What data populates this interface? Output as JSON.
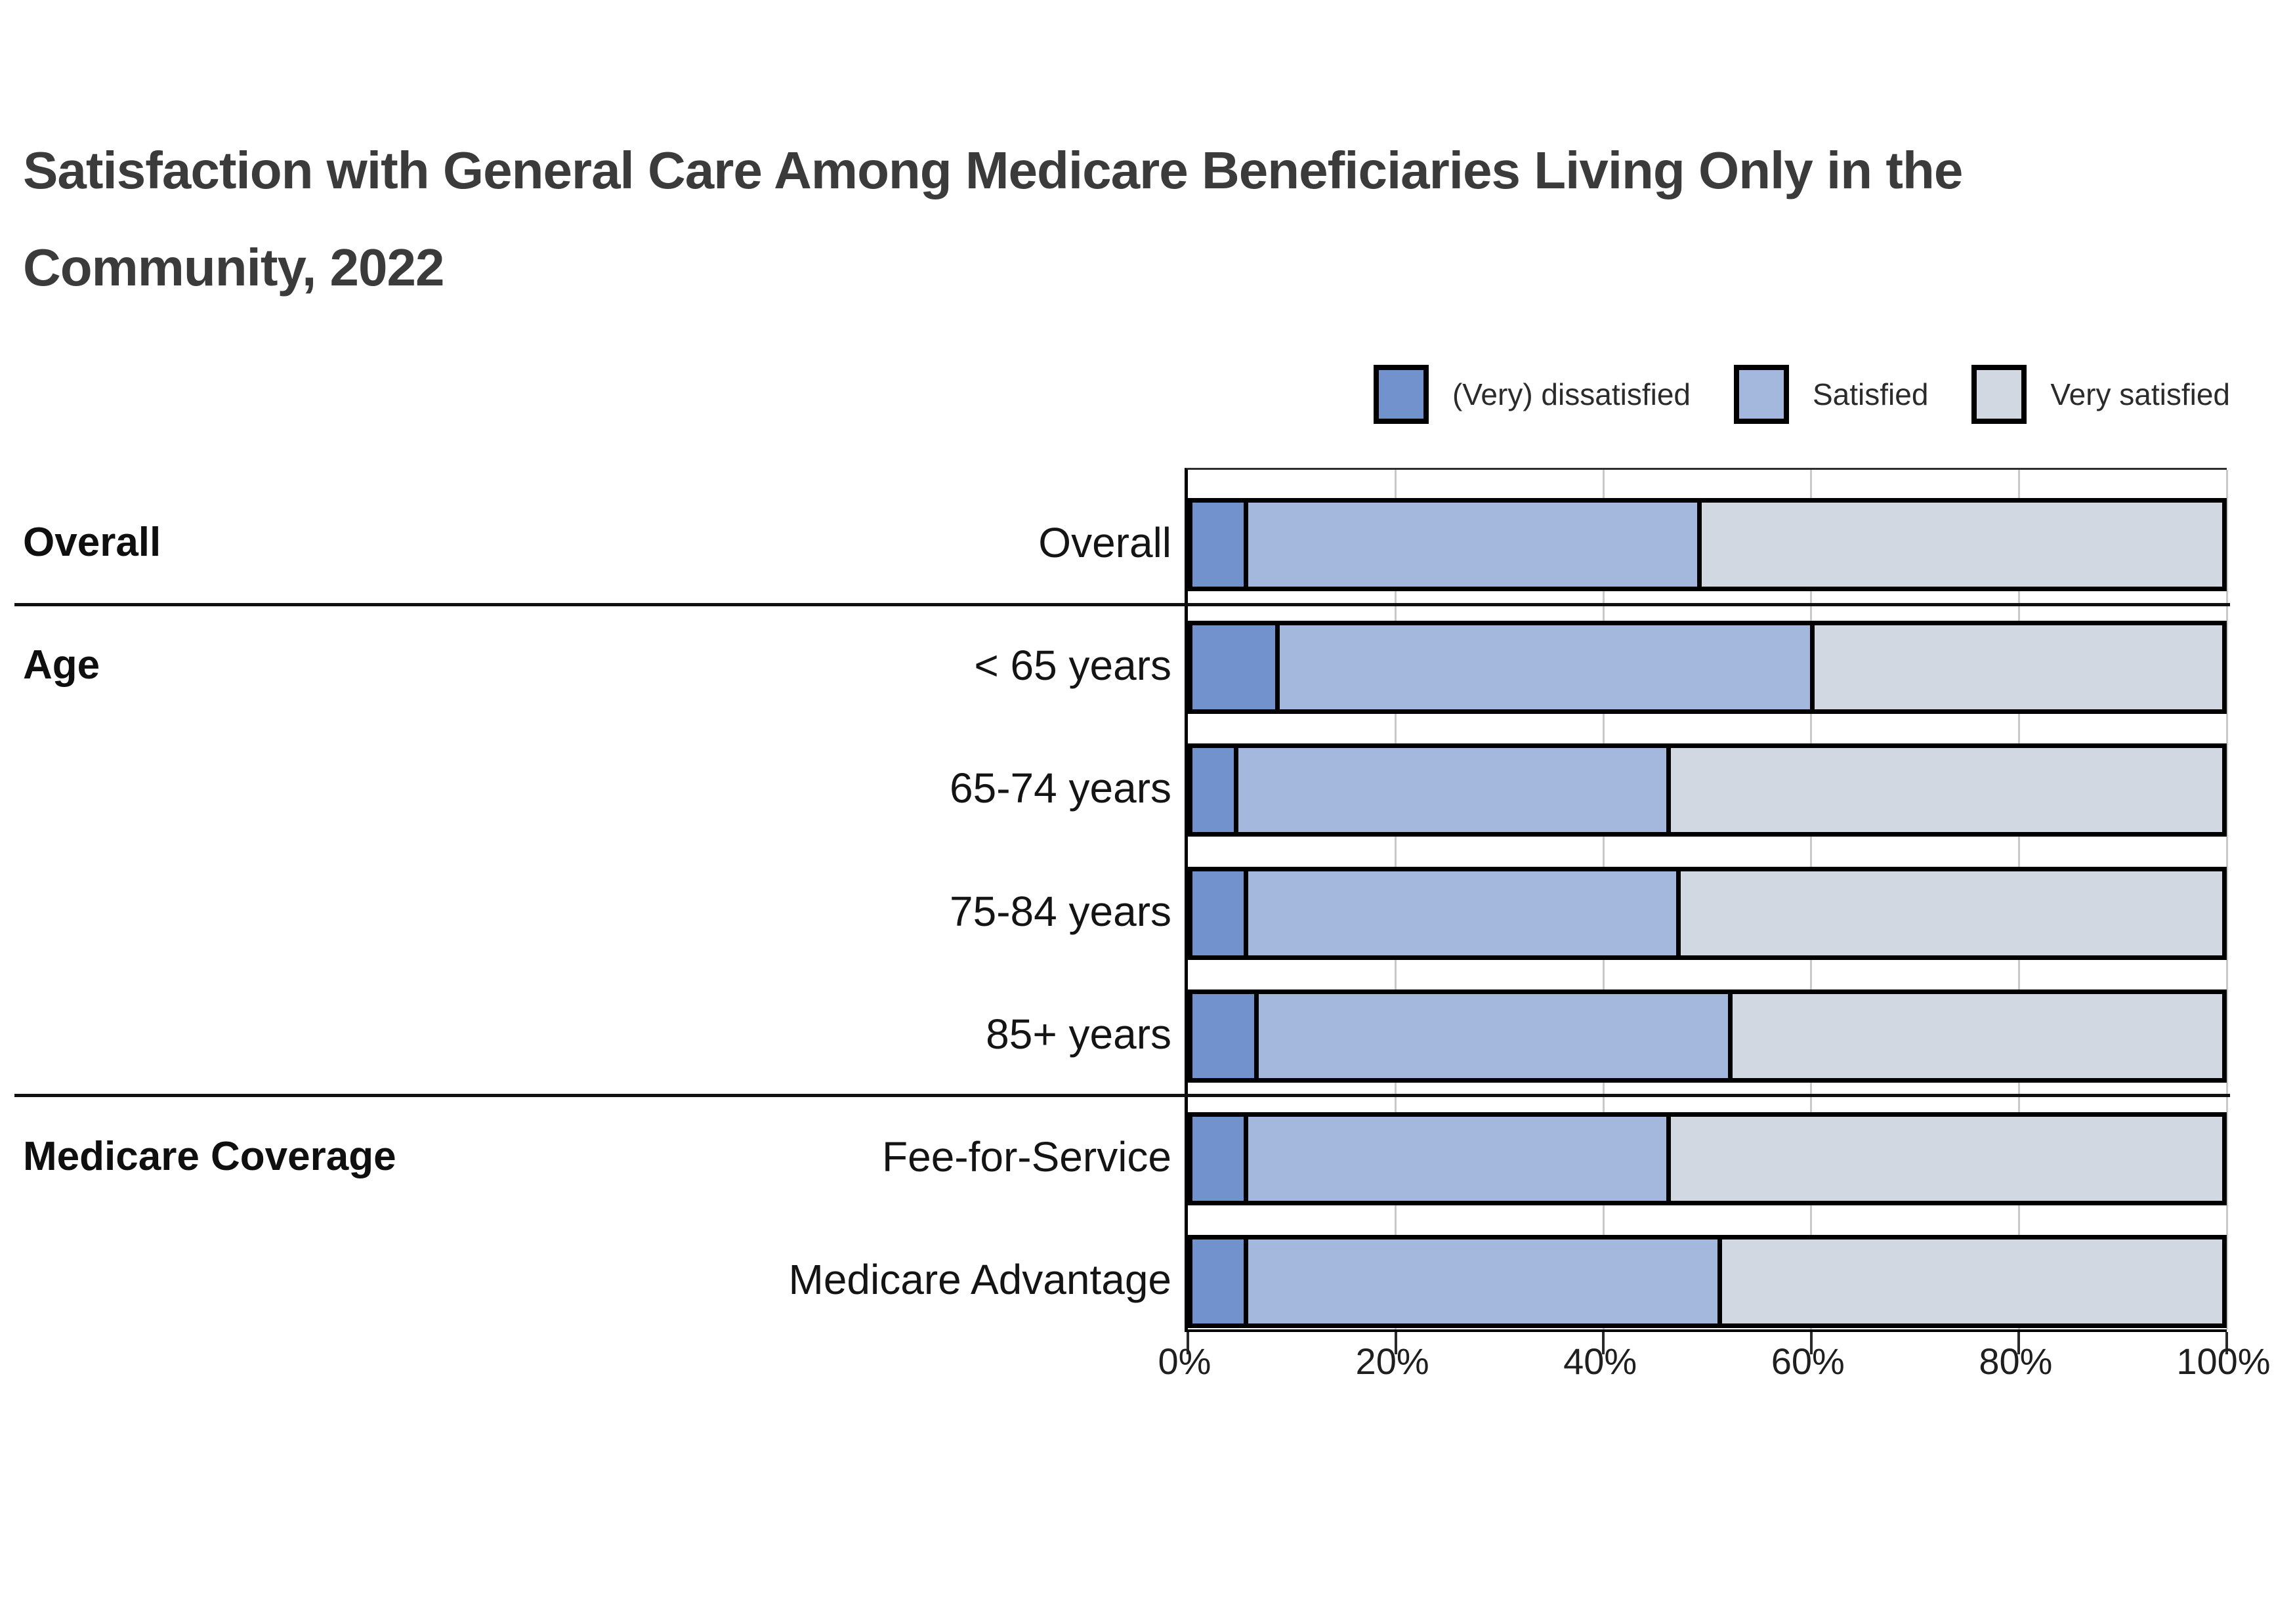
{
  "title": {
    "lines": [
      "Satisfaction with General Care Among Medicare Beneficiaries Living Only in the",
      "Community, 2022"
    ]
  },
  "legend": {
    "items": [
      {
        "label": "(Very) dissatisfied",
        "color": "#7292ce"
      },
      {
        "label": "Satisfied",
        "color": "#a4b7dc"
      },
      {
        "label": "Very satisfied",
        "color": "#d2d8e2"
      }
    ]
  },
  "chart_data": {
    "type": "bar",
    "subtype": "horizontal_stacked",
    "stacked": true,
    "unit": "percent",
    "title": "Satisfaction with General Care Among Medicare Beneficiaries Living Only in the Community, 2022",
    "categories": [
      "Overall",
      "< 65 years",
      "65-74 years",
      "75-84 years",
      "85+ years",
      "Fee-for-Service",
      "Medicare Advantage"
    ],
    "series": [
      {
        "name": "(Very) dissatisfied",
        "color": "#7292ce",
        "values": [
          5,
          8,
          4,
          5,
          6,
          5,
          5
        ]
      },
      {
        "name": "Satisfied",
        "color": "#a4b7dc",
        "values": [
          44,
          52,
          42,
          42,
          46,
          41,
          46
        ]
      },
      {
        "name": "Very satisfied",
        "color": "#d2d8e2",
        "values": [
          51,
          40,
          54,
          53,
          48,
          54,
          49
        ]
      }
    ],
    "groups": [
      {
        "label": "Overall",
        "row_indexes": [
          0
        ]
      },
      {
        "label": "Age",
        "row_indexes": [
          1,
          2,
          3,
          4
        ]
      },
      {
        "label": "Medicare Coverage",
        "row_indexes": [
          5,
          6
        ]
      }
    ],
    "x_axis": {
      "min": 0,
      "max": 100,
      "tick_step": 20,
      "tick_labels": [
        "0%",
        "20%",
        "40%",
        "60%",
        "80%",
        "100%"
      ],
      "grid": true
    },
    "legend_position": "top-right",
    "styles": {
      "bar_border_color": "#000000",
      "gridline_color": "#c9c9c9",
      "separator_color": "#111111"
    }
  }
}
